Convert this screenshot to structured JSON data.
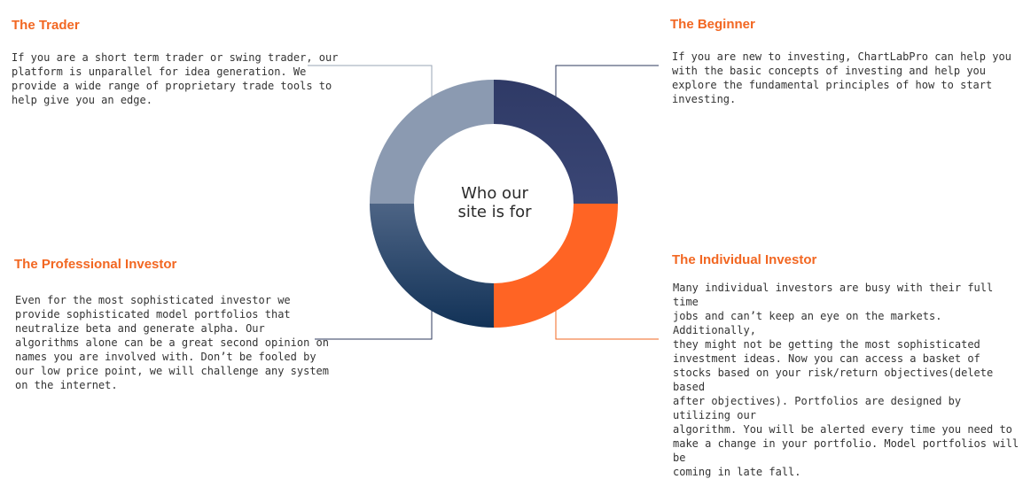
{
  "colors": {
    "heading": "#f26722",
    "text": "#333333",
    "segment_beginner": "#35406e",
    "segment_individual": "#ff6424",
    "segment_professional": "#1f4063",
    "segment_trader": "#8b9ab1",
    "line_dark": "#2d3a5c",
    "line_gray": "#9aa5b4",
    "line_orange": "#f26722"
  },
  "center": {
    "line1": "Who our",
    "line2": "site is for"
  },
  "sections": {
    "trader": {
      "title": "The Trader",
      "lines": [
        "If you are a short term trader or swing trader, our",
        "platform is unparallel for idea generation. We",
        "provide a wide range of proprietary trade tools to",
        "help give you an edge."
      ]
    },
    "beginner": {
      "title": "The Beginner",
      "lines": [
        "If you are new to investing, ChartLabPro can help you",
        "with the basic concepts of investing and help you",
        "explore the fundamental principles of how to start",
        "investing."
      ]
    },
    "professional": {
      "title": "The Professional Investor",
      "lines": [
        "Even for the most sophisticated investor we",
        "provide sophisticated model portfolios that",
        "neutralize beta and generate alpha. Our",
        "algorithms alone can be a great second opinion on",
        "names you are involved with. Don’t be fooled by",
        "our low price point, we will challenge any system",
        "on the internet."
      ]
    },
    "individual": {
      "title": "The Individual Investor",
      "lines": [
        "Many individual investors are busy with their full time",
        "jobs and can’t keep an eye on the markets. Additionally,",
        "they might not be getting the most sophisticated",
        "investment ideas. Now you can access a basket of",
        "stocks based on your risk/return objectives(delete based",
        "after objectives). Portfolios are designed by utilizing our",
        "algorithm. You will be alerted every time you need to",
        "make a change in your portfolio. Model portfolios will be",
        "coming in late fall."
      ]
    }
  }
}
